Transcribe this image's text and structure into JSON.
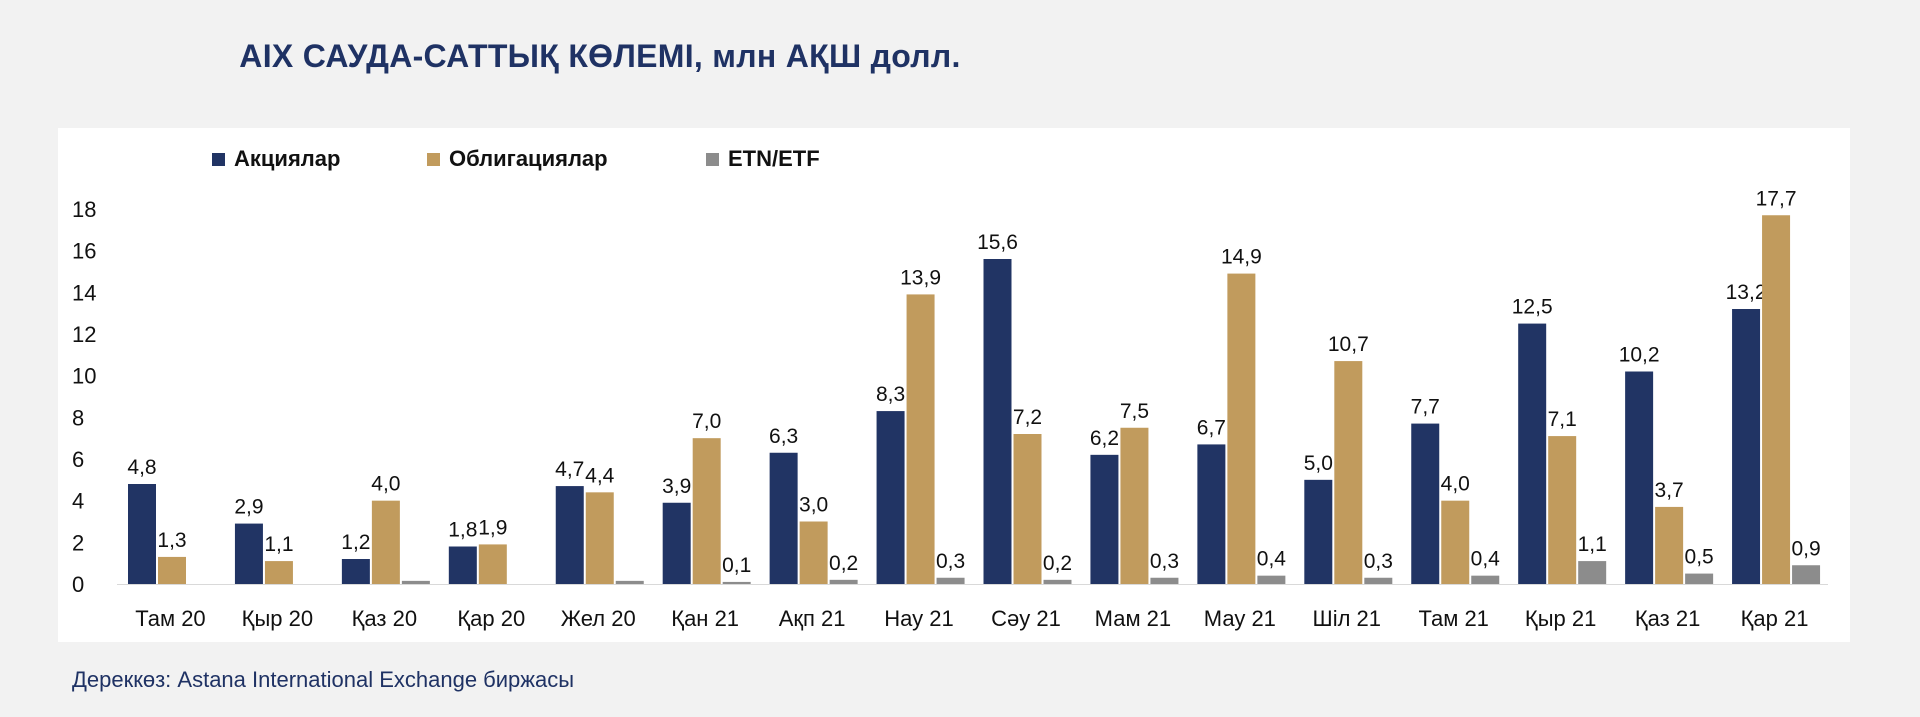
{
  "title": "AIX САУДА-САТТЫҚ КӨЛЕМІ, млн АҚШ долл.",
  "source": "Дереккөз: Astana International Exchange биржасы",
  "colors": {
    "background": "#f2f2f2",
    "panel": "#ffffff",
    "title": "#1f3264",
    "series": [
      "#213464",
      "#c19b5d",
      "#8c8c8c"
    ]
  },
  "chart_data": {
    "type": "bar",
    "title": "AIX САУДА-САТТЫҚ КӨЛЕМІ, млн АҚШ долл.",
    "xlabel": "",
    "ylabel": "",
    "ylim": [
      0,
      18
    ],
    "yticks": [
      "0",
      "2",
      "4",
      "6",
      "8",
      "10",
      "12",
      "14",
      "16",
      "18"
    ],
    "grid": false,
    "legend_position": "top-left",
    "categories": [
      "Там 20",
      "Қыр 20",
      "Қаз 20",
      "Қар 20",
      "Жел 20",
      "Қан 21",
      "Ақп 21",
      "Нау 21",
      "Сәу 21",
      "Мам 21",
      "Мау 21",
      "Шіл 21",
      "Там 21",
      "Қыр 21",
      "Қаз 21",
      "Қар 21"
    ],
    "series": [
      {
        "name": "Акциялар",
        "values": [
          4.8,
          2.9,
          1.2,
          1.8,
          4.7,
          3.9,
          6.3,
          8.3,
          15.6,
          6.2,
          6.7,
          5.0,
          7.7,
          12.5,
          10.2,
          13.2
        ],
        "labels": [
          "4,8",
          "2,9",
          "1,2",
          "1,8",
          "4,7",
          "3,9",
          "6,3",
          "8,3",
          "15,6",
          "6,2",
          "6,7",
          "5,0",
          "7,7",
          "12,5",
          "10,2",
          "13,2"
        ]
      },
      {
        "name": "Облигациялар",
        "values": [
          1.3,
          1.1,
          4.0,
          1.9,
          4.4,
          7.0,
          3.0,
          13.9,
          7.2,
          7.5,
          14.9,
          10.7,
          4.0,
          7.1,
          3.7,
          17.7
        ],
        "labels": [
          "1,3",
          "1,1",
          "4,0",
          "1,9",
          "4,4",
          "7,0",
          "3,0",
          "13,9",
          "7,2",
          "7,5",
          "14,9",
          "10,7",
          "4,0",
          "7,1",
          "3,7",
          "17,7"
        ]
      },
      {
        "name": "ETN/ETF",
        "values": [
          0,
          0,
          0.15,
          0,
          0.15,
          0.1,
          0.2,
          0.3,
          0.2,
          0.3,
          0.4,
          0.3,
          0.4,
          1.1,
          0.5,
          0.9
        ],
        "labels": [
          "",
          "",
          "",
          "",
          "",
          "0,1",
          "0,2",
          "0,3",
          "0,2",
          "0,3",
          "0,4",
          "0,3",
          "0,4",
          "1,1",
          "0,5",
          "0,9"
        ]
      }
    ]
  }
}
